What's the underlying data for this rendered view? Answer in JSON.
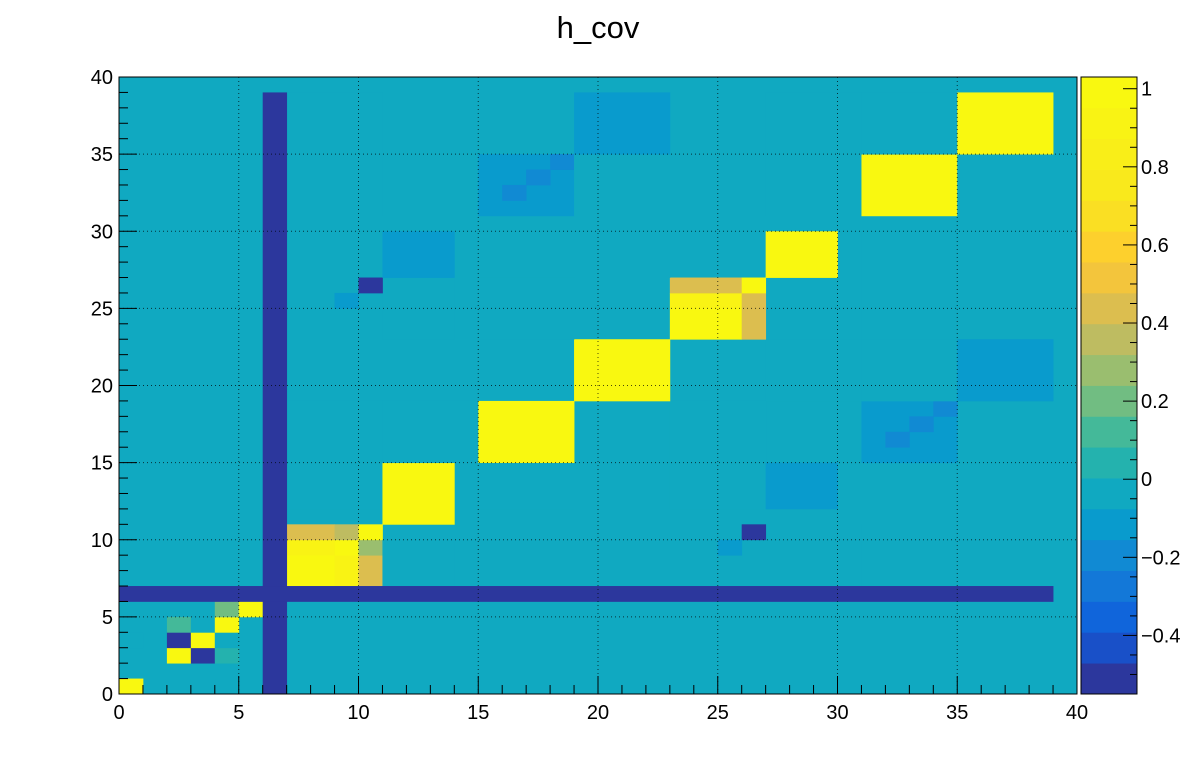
{
  "chart_data": {
    "type": "heatmap",
    "title": "h_cov",
    "xlabel": "",
    "ylabel": "",
    "xlim": [
      0,
      40
    ],
    "ylim": [
      0,
      40
    ],
    "x_ticks": [
      "0",
      "5",
      "10",
      "15",
      "20",
      "25",
      "30",
      "35",
      "40"
    ],
    "y_ticks": [
      "0",
      "5",
      "10",
      "15",
      "20",
      "25",
      "30",
      "35",
      "40"
    ],
    "z_ticks": [
      "1",
      "0.8",
      "0.6",
      "0.4",
      "0.2",
      "0",
      "−0.2",
      "−0.4"
    ],
    "z_tick_values": [
      1,
      0.8,
      0.6,
      0.4,
      0.2,
      0,
      -0.2,
      -0.4
    ],
    "zlim": [
      -0.55,
      1.03
    ],
    "grid": true,
    "palette": "kBird",
    "background_value": 0,
    "cells": [
      {
        "x": [
          0,
          1
        ],
        "y": [
          0,
          1
        ],
        "v": 1
      },
      {
        "x": [
          3,
          4
        ],
        "y": [
          0,
          1
        ],
        "v": -0.05
      },
      {
        "x": [
          2,
          3
        ],
        "y": [
          2,
          3
        ],
        "v": 1
      },
      {
        "x": [
          3,
          4
        ],
        "y": [
          2,
          3
        ],
        "v": -0.55
      },
      {
        "x": [
          4,
          5
        ],
        "y": [
          2,
          3
        ],
        "v": 0.05
      },
      {
        "x": [
          0,
          1
        ],
        "y": [
          3,
          4
        ],
        "v": -0.05
      },
      {
        "x": [
          2,
          3
        ],
        "y": [
          3,
          4
        ],
        "v": -0.55
      },
      {
        "x": [
          3,
          4
        ],
        "y": [
          3,
          4
        ],
        "v": 1
      },
      {
        "x": [
          4,
          5
        ],
        "y": [
          3,
          4
        ],
        "v": -0.05
      },
      {
        "x": [
          2,
          3
        ],
        "y": [
          4,
          5
        ],
        "v": 0.15
      },
      {
        "x": [
          3,
          4
        ],
        "y": [
          4,
          5
        ],
        "v": -0.05
      },
      {
        "x": [
          4,
          5
        ],
        "y": [
          4,
          5
        ],
        "v": 1
      },
      {
        "x": [
          4,
          5
        ],
        "y": [
          5,
          6
        ],
        "v": 0.2
      },
      {
        "x": [
          5,
          6
        ],
        "y": [
          5,
          6
        ],
        "v": 1
      },
      {
        "x": [
          7,
          9
        ],
        "y": [
          7,
          9
        ],
        "v": 1
      },
      {
        "x": [
          9,
          10
        ],
        "y": [
          7,
          9
        ],
        "v": 0.93
      },
      {
        "x": [
          10,
          11
        ],
        "y": [
          7,
          9
        ],
        "v": 0.4
      },
      {
        "x": [
          7,
          9
        ],
        "y": [
          9,
          10
        ],
        "v": 0.95
      },
      {
        "x": [
          9,
          10
        ],
        "y": [
          9,
          10
        ],
        "v": 1
      },
      {
        "x": [
          10,
          11
        ],
        "y": [
          9,
          10
        ],
        "v": 0.3
      },
      {
        "x": [
          7,
          9
        ],
        "y": [
          10,
          11
        ],
        "v": 0.45
      },
      {
        "x": [
          9,
          10
        ],
        "y": [
          10,
          11
        ],
        "v": 0.35
      },
      {
        "x": [
          10,
          11
        ],
        "y": [
          10,
          11
        ],
        "v": 1
      },
      {
        "x": [
          11,
          14
        ],
        "y": [
          7,
          10
        ],
        "v": -0.02
      },
      {
        "x": [
          15,
          19
        ],
        "y": [
          7,
          10
        ],
        "v": -0.05
      },
      {
        "x": [
          25,
          26
        ],
        "y": [
          9,
          10
        ],
        "v": -0.12
      },
      {
        "x": [
          26,
          27
        ],
        "y": [
          10,
          11
        ],
        "v": -0.55
      },
      {
        "x": [
          31,
          35
        ],
        "y": [
          7,
          11
        ],
        "v": -0.05
      },
      {
        "x": [
          35,
          39
        ],
        "y": [
          7,
          11
        ],
        "v": -0.05
      },
      {
        "x": [
          7,
          11
        ],
        "y": [
          12,
          15
        ],
        "v": -0.03
      },
      {
        "x": [
          11,
          14
        ],
        "y": [
          11,
          15
        ],
        "v": 1
      },
      {
        "x": [
          15,
          19
        ],
        "y": [
          12,
          15
        ],
        "v": -0.05
      },
      {
        "x": [
          23,
          27
        ],
        "y": [
          12,
          15
        ],
        "v": -0.05
      },
      {
        "x": [
          27,
          30
        ],
        "y": [
          12,
          15
        ],
        "v": -0.12
      },
      {
        "x": [
          7,
          11
        ],
        "y": [
          15,
          19
        ],
        "v": -0.03
      },
      {
        "x": [
          11,
          15
        ],
        "y": [
          15,
          19
        ],
        "v": -0.03
      },
      {
        "x": [
          15,
          19
        ],
        "y": [
          15,
          19
        ],
        "v": 1
      },
      {
        "x": [
          23,
          27
        ],
        "y": [
          15,
          19
        ],
        "v": -0.05
      },
      {
        "x": [
          31,
          35
        ],
        "y": [
          15,
          19
        ],
        "v": -0.12
      },
      {
        "x": [
          32,
          33
        ],
        "y": [
          16,
          17
        ],
        "v": -0.18
      },
      {
        "x": [
          33,
          34
        ],
        "y": [
          17,
          18
        ],
        "v": -0.18
      },
      {
        "x": [
          34,
          35
        ],
        "y": [
          18,
          19
        ],
        "v": -0.2
      },
      {
        "x": [
          19,
          23
        ],
        "y": [
          19,
          23
        ],
        "v": 1
      },
      {
        "x": [
          27,
          31
        ],
        "y": [
          19,
          23
        ],
        "v": -0.05
      },
      {
        "x": [
          31,
          35
        ],
        "y": [
          19,
          23
        ],
        "v": -0.05
      },
      {
        "x": [
          35,
          39
        ],
        "y": [
          19,
          23
        ],
        "v": -0.12
      },
      {
        "x": [
          11,
          14
        ],
        "y": [
          23,
          25
        ],
        "v": -0.05
      },
      {
        "x": [
          15,
          19
        ],
        "y": [
          23,
          25
        ],
        "v": -0.05
      },
      {
        "x": [
          23,
          26
        ],
        "y": [
          23,
          25
        ],
        "v": 1
      },
      {
        "x": [
          26,
          27
        ],
        "y": [
          23,
          25
        ],
        "v": 0.4
      },
      {
        "x": [
          23,
          26
        ],
        "y": [
          25,
          26
        ],
        "v": 0.95
      },
      {
        "x": [
          26,
          27
        ],
        "y": [
          25,
          26
        ],
        "v": 0.4
      },
      {
        "x": [
          23,
          26
        ],
        "y": [
          26,
          27
        ],
        "v": 0.45
      },
      {
        "x": [
          26,
          27
        ],
        "y": [
          26,
          27
        ],
        "v": 1
      },
      {
        "x": [
          11,
          14
        ],
        "y": [
          25,
          27
        ],
        "v": -0.03
      },
      {
        "x": [
          15,
          19
        ],
        "y": [
          25,
          27
        ],
        "v": -0.05
      },
      {
        "x": [
          9,
          10
        ],
        "y": [
          25,
          26
        ],
        "v": -0.12
      },
      {
        "x": [
          10,
          11
        ],
        "y": [
          26,
          27
        ],
        "v": -0.5
      },
      {
        "x": [
          31,
          35
        ],
        "y": [
          23,
          27
        ],
        "v": -0.05
      },
      {
        "x": [
          11,
          14
        ],
        "y": [
          27,
          30
        ],
        "v": -0.12
      },
      {
        "x": [
          19,
          23
        ],
        "y": [
          27,
          30
        ],
        "v": -0.05
      },
      {
        "x": [
          27,
          30
        ],
        "y": [
          27,
          30
        ],
        "v": 1
      },
      {
        "x": [
          31,
          35
        ],
        "y": [
          27,
          30
        ],
        "v": -0.05
      },
      {
        "x": [
          35,
          39
        ],
        "y": [
          27,
          30
        ],
        "v": -0.05
      },
      {
        "x": [
          7,
          11
        ],
        "y": [
          31,
          39
        ],
        "v": -0.05
      },
      {
        "x": [
          15,
          19
        ],
        "y": [
          31,
          35
        ],
        "v": -0.1
      },
      {
        "x": [
          16,
          17
        ],
        "y": [
          32,
          33
        ],
        "v": -0.18
      },
      {
        "x": [
          17,
          18
        ],
        "y": [
          33,
          34
        ],
        "v": -0.18
      },
      {
        "x": [
          18,
          19
        ],
        "y": [
          34,
          35
        ],
        "v": -0.18
      },
      {
        "x": [
          19,
          27
        ],
        "y": [
          31,
          35
        ],
        "v": -0.05
      },
      {
        "x": [
          27,
          31
        ],
        "y": [
          31,
          35
        ],
        "v": -0.05
      },
      {
        "x": [
          31,
          35
        ],
        "y": [
          31,
          35
        ],
        "v": 1
      },
      {
        "x": [
          35,
          39
        ],
        "y": [
          31,
          35
        ],
        "v": -0.05
      },
      {
        "x": [
          19,
          23
        ],
        "y": [
          35,
          39
        ],
        "v": -0.15
      },
      {
        "x": [
          27,
          31
        ],
        "y": [
          35,
          39
        ],
        "v": -0.05
      },
      {
        "x": [
          31,
          35
        ],
        "y": [
          35,
          39
        ],
        "v": -0.05
      },
      {
        "x": [
          35,
          39
        ],
        "y": [
          35,
          39
        ],
        "v": 1
      },
      {
        "x": [
          6,
          7
        ],
        "y": [
          0,
          39
        ],
        "v": -0.55
      },
      {
        "x": [
          0,
          39
        ],
        "y": [
          6,
          7
        ],
        "v": -0.55
      }
    ]
  }
}
